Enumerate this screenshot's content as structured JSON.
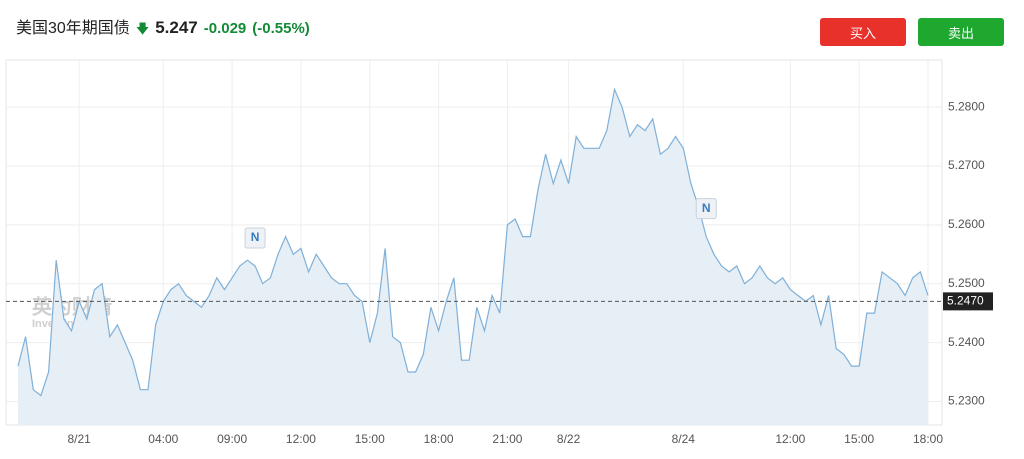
{
  "header": {
    "title": "美国30年期国债",
    "price": "5.247",
    "change": "-0.029",
    "change_pct": "(-0.55%)",
    "buy": "买入",
    "sell": "卖出"
  },
  "chart_data": {
    "type": "line",
    "color": "#7fb0d8",
    "fill": "#e6eef6",
    "watermark": [
      "英为财情",
      "Investing.com"
    ],
    "categories": [
      null,
      null,
      null,
      null,
      null,
      null,
      null,
      null,
      "8/21",
      null,
      null,
      null,
      null,
      null,
      null,
      null,
      null,
      null,
      null,
      "04:00",
      null,
      null,
      null,
      null,
      null,
      null,
      null,
      null,
      "09:00",
      null,
      null,
      null,
      null,
      null,
      null,
      null,
      null,
      "12:00",
      null,
      null,
      null,
      null,
      null,
      null,
      null,
      null,
      "15:00",
      null,
      null,
      null,
      null,
      null,
      null,
      null,
      null,
      "18:00",
      null,
      null,
      null,
      null,
      null,
      null,
      null,
      null,
      "21:00",
      null,
      null,
      null,
      null,
      null,
      null,
      null,
      "8/22",
      null,
      null,
      null,
      null,
      null,
      null,
      null,
      null,
      null,
      null,
      null,
      null,
      null,
      null,
      "8/24",
      null,
      null,
      null,
      null,
      null,
      null,
      null,
      null,
      null,
      null,
      null,
      null,
      null,
      "12:00",
      null,
      null,
      null,
      null,
      null,
      null,
      null,
      null,
      "15:00",
      null,
      null,
      null,
      null,
      null,
      null,
      null,
      null,
      "18:00"
    ],
    "values": [
      5.236,
      5.241,
      5.232,
      5.231,
      5.235,
      5.254,
      5.244,
      5.242,
      5.247,
      5.244,
      5.249,
      5.25,
      5.241,
      5.243,
      5.24,
      5.237,
      5.232,
      5.232,
      5.243,
      5.247,
      5.249,
      5.25,
      5.248,
      5.247,
      5.246,
      5.248,
      5.251,
      5.249,
      5.251,
      5.253,
      5.254,
      5.253,
      5.25,
      5.251,
      5.255,
      5.258,
      5.255,
      5.256,
      5.252,
      5.255,
      5.253,
      5.251,
      5.25,
      5.25,
      5.248,
      5.247,
      5.24,
      5.245,
      5.256,
      5.241,
      5.24,
      5.235,
      5.235,
      5.238,
      5.246,
      5.242,
      5.247,
      5.251,
      5.237,
      5.237,
      5.246,
      5.242,
      5.248,
      5.245,
      5.26,
      5.261,
      5.258,
      5.258,
      5.266,
      5.272,
      5.267,
      5.271,
      5.267,
      5.275,
      5.273,
      5.273,
      5.273,
      5.276,
      5.283,
      5.28,
      5.275,
      5.277,
      5.276,
      5.278,
      5.272,
      5.273,
      5.275,
      5.273,
      5.267,
      5.263,
      5.258,
      5.255,
      5.253,
      5.252,
      5.253,
      5.25,
      5.251,
      5.253,
      5.251,
      5.25,
      5.251,
      5.249,
      5.248,
      5.247,
      5.248,
      5.243,
      5.248,
      5.239,
      5.238,
      5.236,
      5.236,
      5.245,
      5.245,
      5.252,
      5.251,
      5.25,
      5.248,
      5.251,
      5.252,
      5.248
    ],
    "ylim": [
      5.226,
      5.288
    ],
    "yticks": [
      {
        "value": 5.23,
        "label": "5.2300"
      },
      {
        "value": 5.24,
        "label": "5.2400"
      },
      {
        "value": 5.25,
        "label": "5.2500"
      },
      {
        "value": 5.26,
        "label": "5.2600"
      },
      {
        "value": 5.27,
        "label": "5.2700"
      },
      {
        "value": 5.28,
        "label": "5.2800"
      }
    ],
    "reference_line": {
      "value": 5.247,
      "label": "5.2470"
    },
    "annotations": [
      {
        "text": "N",
        "index": 31
      },
      {
        "text": "N",
        "index": 90
      }
    ],
    "grid": true
  }
}
